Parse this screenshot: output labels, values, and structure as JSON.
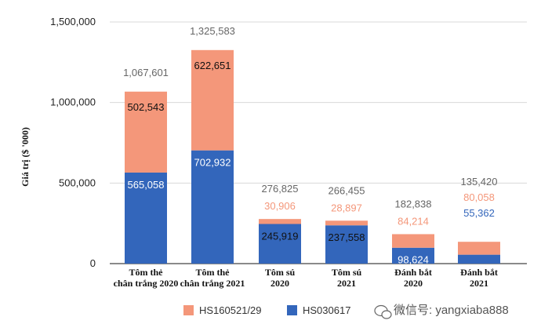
{
  "chart_data": {
    "type": "bar",
    "stacked": true,
    "title": "",
    "xlabel": "",
    "ylabel": "Giá trị  ($ '000)",
    "ylim": [
      0,
      1500000
    ],
    "yticks": [
      0,
      500000,
      1000000,
      1500000
    ],
    "ytick_labels": [
      "0",
      "500,000",
      "1,000,000",
      "1,500,000"
    ],
    "grid": true,
    "legend_position": "bottom",
    "categories": [
      [
        "Tôm thẻ",
        "chân trắng 2020"
      ],
      [
        "Tôm thẻ",
        "chân trắng 2021"
      ],
      [
        "Tôm sú",
        "2020"
      ],
      [
        "Tôm sú",
        "2021"
      ],
      [
        "Đánh bắt",
        "2020"
      ],
      [
        "Đánh bắt",
        "2021"
      ]
    ],
    "series": [
      {
        "name": "HS030617",
        "color": "#3366bb",
        "values": [
          565058,
          702932,
          245919,
          237558,
          98624,
          55362
        ],
        "labels": [
          "565,058",
          "702,932",
          "245,919",
          "237,558",
          "98,624",
          "55,362"
        ],
        "label_styles": [
          "inside-light",
          "inside-light",
          "inside-dark",
          "inside-dark",
          "inside-light",
          "above-blue"
        ]
      },
      {
        "name": "HS160521/29",
        "color": "#f4977a",
        "values": [
          502543,
          622651,
          30906,
          28897,
          84214,
          80058
        ],
        "labels": [
          "502,543",
          "622,651",
          "30,906",
          "28,897",
          "84,214",
          "80,058"
        ],
        "label_styles": [
          "inside-dark",
          "inside-dark",
          "above-orange",
          "above-orange",
          "above-orange",
          "above-orange"
        ]
      }
    ],
    "totals": [
      1067601,
      1325583,
      276825,
      266455,
      182838,
      135420
    ],
    "total_labels": [
      "1,067,601",
      "1,325,583",
      "276,825",
      "266,455",
      "182,838",
      "135,420"
    ],
    "legend": [
      {
        "name": "HS160521/29",
        "color": "#f4977a"
      },
      {
        "name": "HS030617",
        "color": "#3366bb"
      }
    ]
  },
  "watermark": {
    "text": "微信号: yangxiaba888",
    "icon": "wechat-icon"
  }
}
